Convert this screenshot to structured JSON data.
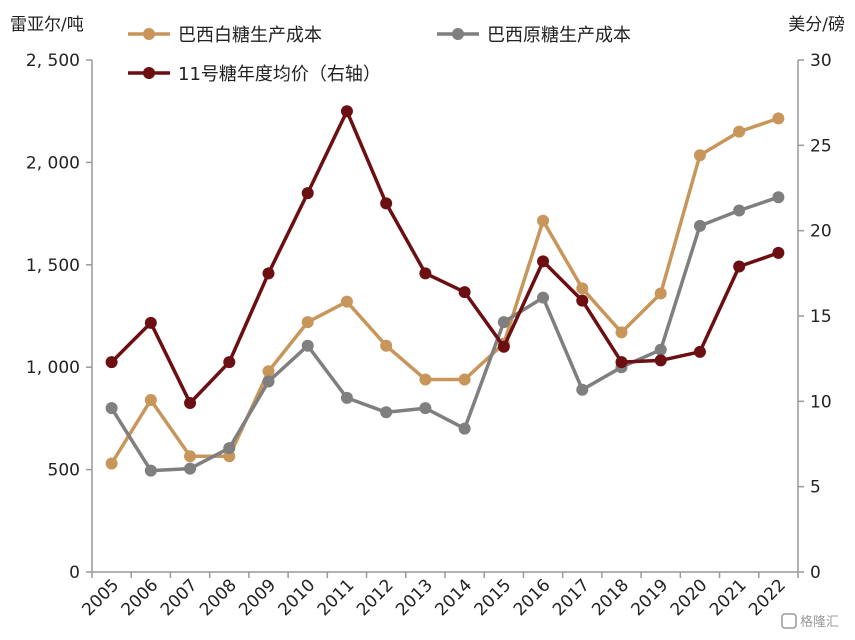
{
  "chart_data": {
    "type": "line",
    "x": [
      "2005",
      "2006",
      "2007",
      "2008",
      "2009",
      "2010",
      "2011",
      "2012",
      "2013",
      "2014",
      "2015",
      "2016",
      "2017",
      "2018",
      "2019",
      "2020",
      "2021",
      "2022"
    ],
    "y_left_label": "雷亚尔/吨",
    "y_right_label": "美分/磅",
    "ylim_left": [
      0,
      2500
    ],
    "ylim_right": [
      0,
      30
    ],
    "y_left_ticks": [
      0,
      500,
      1000,
      1500,
      2000,
      2500
    ],
    "y_left_tick_labels": [
      "0",
      "500",
      "1, 000",
      "1, 500",
      "2, 000",
      "2, 500"
    ],
    "y_right_ticks": [
      0,
      5,
      10,
      15,
      20,
      25,
      30
    ],
    "y_right_tick_labels": [
      "0",
      "5",
      "10",
      "15",
      "20",
      "25",
      "30"
    ],
    "grid": false,
    "legend_position": "top",
    "series": [
      {
        "name": "巴西白糖生产成本",
        "axis": "left",
        "color": "#C8965A",
        "values": [
          530,
          840,
          565,
          565,
          980,
          1220,
          1320,
          1105,
          940,
          940,
          1115,
          1715,
          1385,
          1170,
          1360,
          2035,
          2150,
          2215
        ]
      },
      {
        "name": "巴西原糖生产成本",
        "axis": "left",
        "color": "#7F7F7F",
        "values": [
          800,
          495,
          505,
          605,
          930,
          1105,
          850,
          780,
          800,
          700,
          1220,
          1340,
          890,
          1000,
          1085,
          1690,
          1765,
          1830
        ]
      },
      {
        "name": "11号糖年度均价（右轴）",
        "axis": "right",
        "color": "#6B0F12",
        "values": [
          12.3,
          14.6,
          9.9,
          12.3,
          17.5,
          22.2,
          27.0,
          21.6,
          17.5,
          16.4,
          13.2,
          18.2,
          15.9,
          12.3,
          12.4,
          12.9,
          17.9,
          18.7
        ]
      }
    ]
  },
  "watermark": {
    "text": "格隆汇"
  }
}
